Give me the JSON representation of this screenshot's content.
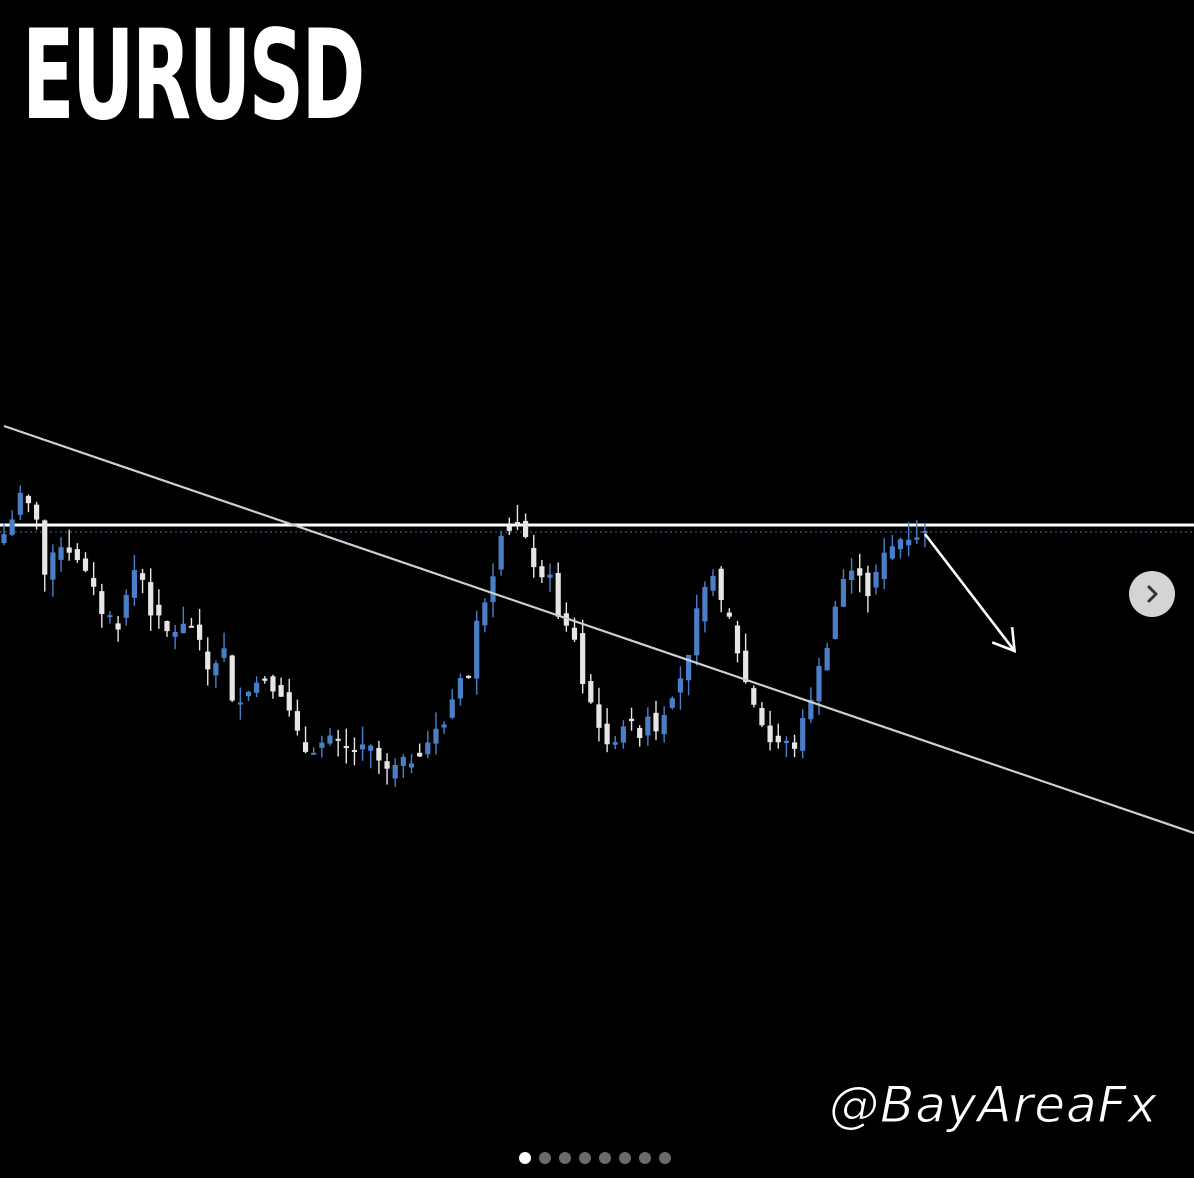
{
  "header": {
    "title": "EURUSD"
  },
  "watermark": {
    "handle": "@BayAreaFx"
  },
  "carousel": {
    "slide_count": 8,
    "active_index": 0,
    "next_icon": "chevron-right-icon"
  },
  "colors": {
    "background": "#000000",
    "bull_candle": "#4a7fc8",
    "bear_candle": "#e6e6e6",
    "trendline": "#cfcfcf",
    "support": "#ffffff",
    "price_line": "#3d6fb5"
  },
  "chart_data": {
    "type": "candlestick",
    "title": "EURUSD",
    "close_path": [
      [
        0,
        108
      ],
      [
        2,
        116
      ],
      [
        4,
        112
      ],
      [
        5,
        99
      ],
      [
        7,
        106
      ],
      [
        9,
        103
      ],
      [
        12,
        91
      ],
      [
        14,
        88
      ],
      [
        16,
        100
      ],
      [
        17,
        98
      ],
      [
        18,
        91
      ],
      [
        20,
        86
      ],
      [
        23,
        88
      ],
      [
        25,
        78
      ],
      [
        27,
        82
      ],
      [
        28,
        70
      ],
      [
        30,
        74
      ],
      [
        32,
        76
      ],
      [
        34,
        73
      ],
      [
        36,
        63
      ],
      [
        37,
        60
      ],
      [
        40,
        62
      ],
      [
        42,
        60
      ],
      [
        45,
        60
      ],
      [
        47,
        55
      ],
      [
        50,
        58
      ],
      [
        52,
        62
      ],
      [
        54,
        66
      ],
      [
        56,
        77
      ],
      [
        57,
        76
      ],
      [
        58,
        88
      ],
      [
        60,
        100
      ],
      [
        61,
        109
      ],
      [
        63,
        110
      ],
      [
        64,
        106
      ],
      [
        66,
        97
      ],
      [
        67,
        100
      ],
      [
        68,
        89
      ],
      [
        70,
        85
      ],
      [
        71,
        75
      ],
      [
        73,
        66
      ],
      [
        74,
        60
      ],
      [
        76,
        66
      ],
      [
        78,
        64
      ],
      [
        79,
        68
      ],
      [
        80,
        65
      ],
      [
        82,
        73
      ],
      [
        84,
        80
      ],
      [
        85,
        90
      ],
      [
        87,
        100
      ],
      [
        88,
        92
      ],
      [
        89,
        89
      ],
      [
        91,
        75
      ],
      [
        93,
        66
      ],
      [
        94,
        62
      ],
      [
        97,
        61
      ],
      [
        98,
        66
      ],
      [
        99,
        72
      ],
      [
        101,
        84
      ],
      [
        102,
        92
      ],
      [
        103,
        98
      ],
      [
        105,
        100
      ],
      [
        106,
        95
      ],
      [
        108,
        103
      ],
      [
        110,
        107
      ],
      [
        112,
        108
      ],
      [
        113,
        108
      ]
    ],
    "support_level": 110,
    "trendline": {
      "x": [
        0,
        113
      ],
      "y": [
        132,
        62
      ]
    },
    "projection": {
      "from": [
        113,
        108
      ],
      "to": [
        124,
        82
      ]
    },
    "ylim": [
      40,
      160
    ],
    "grid": false,
    "legend": "none"
  }
}
